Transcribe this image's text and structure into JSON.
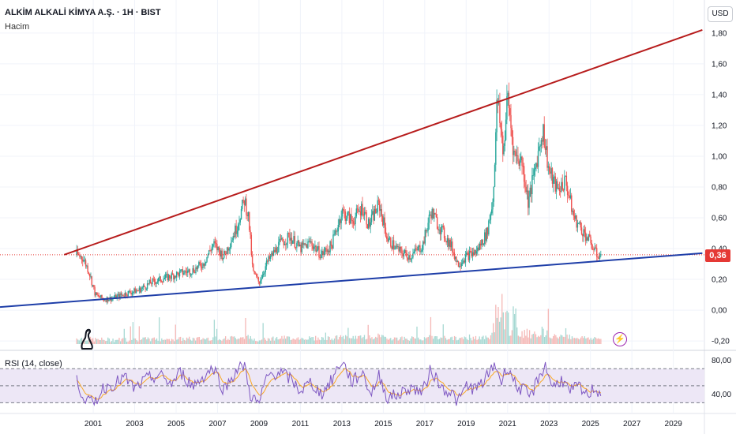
{
  "header": {
    "title": "ALKİM ALKALİ KİMYA A.Ş. · 1H · BIST",
    "subtitle": "Hacim"
  },
  "currency": "USD",
  "last_price_label": "0,36",
  "rsi_label": "RSI (14, close)",
  "colors": {
    "up": "#26a69a",
    "down": "#ef5350",
    "resistance": "#b71c1c",
    "support": "#1e3ea8",
    "rsi_line": "#7e57c2",
    "rsi_ma": "#f9a825",
    "rsi_band": "#ede7f6",
    "price_tag": "#e53935"
  },
  "chart_data": [
    {
      "type": "candlestick",
      "title": "ALKİM ALKALİ KİMYA A.Ş. · 1H · BIST",
      "y_ticks": [
        "1,80",
        "1,60",
        "1,40",
        "1,20",
        "1,00",
        "0,80",
        "0,60",
        "0,40",
        "0,20",
        "0,00",
        "-0,20"
      ],
      "y_tick_values": [
        1.8,
        1.6,
        1.4,
        1.2,
        1.0,
        0.8,
        0.6,
        0.4,
        0.2,
        0.0,
        -0.2
      ],
      "x_ticks": [
        "2001",
        "2003",
        "2005",
        "2007",
        "2009",
        "2011",
        "2013",
        "2015",
        "2017",
        "2019",
        "2021",
        "2023",
        "2025",
        "2027",
        "2029"
      ],
      "x_tick_values": [
        2001,
        2003,
        2005,
        2007,
        2009,
        2011,
        2013,
        2015,
        2017,
        2019,
        2021,
        2023,
        2025,
        2027,
        2029
      ],
      "xlim": [
        1996.5,
        2030.5
      ],
      "ylim": [
        -0.22,
        1.83
      ],
      "last_price": 0.36,
      "price_path": [
        [
          2000.2,
          0.36
        ],
        [
          2000.5,
          0.34
        ],
        [
          2000.8,
          0.25
        ],
        [
          2001.1,
          0.1
        ],
        [
          2001.5,
          0.07
        ],
        [
          2002.0,
          0.08
        ],
        [
          2002.6,
          0.11
        ],
        [
          2003.2,
          0.13
        ],
        [
          2003.8,
          0.18
        ],
        [
          2004.5,
          0.21
        ],
        [
          2005.2,
          0.24
        ],
        [
          2005.8,
          0.26
        ],
        [
          2006.3,
          0.3
        ],
        [
          2006.8,
          0.43
        ],
        [
          2007.3,
          0.35
        ],
        [
          2007.9,
          0.53
        ],
        [
          2008.3,
          0.72
        ],
        [
          2008.5,
          0.6
        ],
        [
          2008.7,
          0.25
        ],
        [
          2009.0,
          0.18
        ],
        [
          2009.4,
          0.31
        ],
        [
          2010.0,
          0.43
        ],
        [
          2010.5,
          0.48
        ],
        [
          2011.0,
          0.4
        ],
        [
          2011.5,
          0.44
        ],
        [
          2012.0,
          0.36
        ],
        [
          2012.5,
          0.42
        ],
        [
          2013.0,
          0.64
        ],
        [
          2013.5,
          0.58
        ],
        [
          2014.0,
          0.67
        ],
        [
          2014.3,
          0.55
        ],
        [
          2014.8,
          0.69
        ],
        [
          2015.2,
          0.46
        ],
        [
          2015.8,
          0.38
        ],
        [
          2016.3,
          0.35
        ],
        [
          2016.9,
          0.42
        ],
        [
          2017.3,
          0.64
        ],
        [
          2017.8,
          0.52
        ],
        [
          2018.3,
          0.41
        ],
        [
          2018.6,
          0.3
        ],
        [
          2019.0,
          0.35
        ],
        [
          2019.5,
          0.38
        ],
        [
          2020.0,
          0.5
        ],
        [
          2020.3,
          0.72
        ],
        [
          2020.5,
          1.38
        ],
        [
          2020.8,
          1.02
        ],
        [
          2021.0,
          1.4
        ],
        [
          2021.3,
          1.02
        ],
        [
          2021.7,
          0.96
        ],
        [
          2022.0,
          0.7
        ],
        [
          2022.3,
          0.9
        ],
        [
          2022.7,
          1.18
        ],
        [
          2023.0,
          0.9
        ],
        [
          2023.4,
          0.78
        ],
        [
          2023.8,
          0.84
        ],
        [
          2024.2,
          0.6
        ],
        [
          2024.6,
          0.52
        ],
        [
          2025.0,
          0.44
        ],
        [
          2025.3,
          0.36
        ],
        [
          2025.5,
          0.36
        ]
      ],
      "resistance_line": {
        "from": [
          1999.6,
          0.36
        ],
        "to": [
          2030.4,
          1.82
        ]
      },
      "support_line": {
        "from": [
          1996.5,
          0.02
        ],
        "to": [
          2030.4,
          0.37
        ]
      }
    },
    {
      "type": "line",
      "title": "RSI (14, close)",
      "y_ticks": [
        "80,00",
        "40,00"
      ],
      "y_tick_values": [
        80,
        40
      ],
      "ylim": [
        22,
        87
      ],
      "bands": {
        "upper": 70,
        "middle": 50,
        "lower": 30
      },
      "rsi_path": [
        [
          2000.2,
          55
        ],
        [
          2000.6,
          35
        ],
        [
          2001.0,
          28
        ],
        [
          2001.5,
          48
        ],
        [
          2002.0,
          52
        ],
        [
          2002.5,
          60
        ],
        [
          2003.0,
          46
        ],
        [
          2003.6,
          58
        ],
        [
          2004.2,
          62
        ],
        [
          2004.8,
          52
        ],
        [
          2005.2,
          66
        ],
        [
          2005.8,
          50
        ],
        [
          2006.3,
          60
        ],
        [
          2006.8,
          72
        ],
        [
          2007.3,
          45
        ],
        [
          2007.9,
          68
        ],
        [
          2008.3,
          74
        ],
        [
          2008.6,
          38
        ],
        [
          2009.0,
          28
        ],
        [
          2009.4,
          62
        ],
        [
          2010.0,
          66
        ],
        [
          2010.5,
          58
        ],
        [
          2011.0,
          44
        ],
        [
          2011.5,
          54
        ],
        [
          2012.0,
          40
        ],
        [
          2012.5,
          56
        ],
        [
          2013.0,
          80
        ],
        [
          2013.5,
          54
        ],
        [
          2014.0,
          66
        ],
        [
          2014.4,
          40
        ],
        [
          2014.8,
          62
        ],
        [
          2015.2,
          36
        ],
        [
          2015.8,
          40
        ],
        [
          2016.3,
          48
        ],
        [
          2016.9,
          42
        ],
        [
          2017.3,
          70
        ],
        [
          2017.8,
          48
        ],
        [
          2018.3,
          42
        ],
        [
          2018.6,
          30
        ],
        [
          2019.0,
          50
        ],
        [
          2019.5,
          46
        ],
        [
          2020.0,
          60
        ],
        [
          2020.4,
          76
        ],
        [
          2020.7,
          54
        ],
        [
          2021.0,
          74
        ],
        [
          2021.4,
          50
        ],
        [
          2021.8,
          44
        ],
        [
          2022.1,
          36
        ],
        [
          2022.5,
          60
        ],
        [
          2022.8,
          74
        ],
        [
          2023.2,
          48
        ],
        [
          2023.6,
          58
        ],
        [
          2024.0,
          42
        ],
        [
          2024.4,
          50
        ],
        [
          2024.8,
          38
        ],
        [
          2025.2,
          48
        ],
        [
          2025.5,
          40
        ]
      ]
    }
  ]
}
